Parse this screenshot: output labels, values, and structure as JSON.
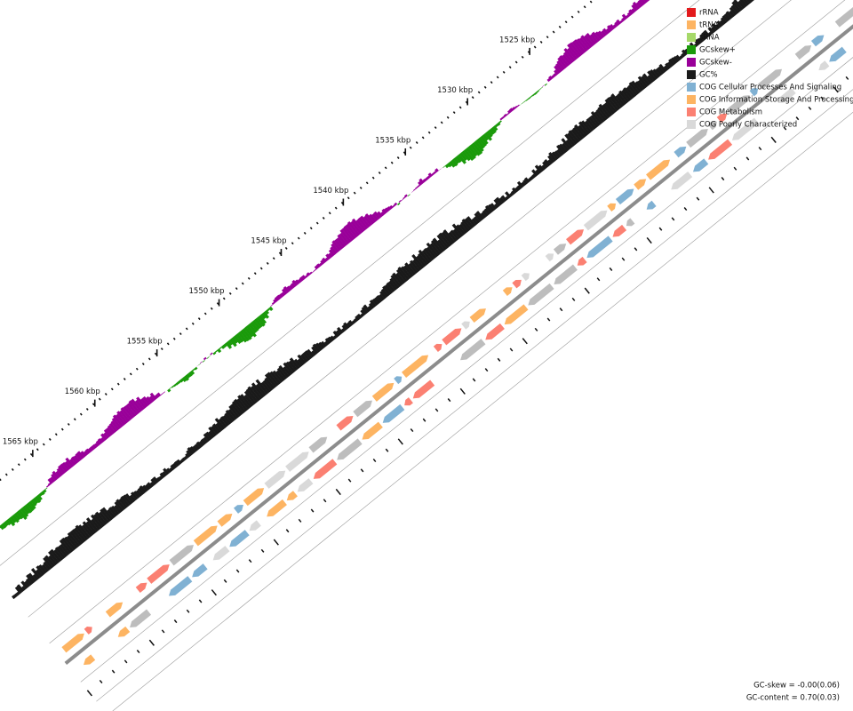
{
  "scale_labels": [
    "1525 kbp",
    "1530 kbp",
    "1535 kbp",
    "1540 kbp",
    "1545 kbp",
    "1550 kbp",
    "1555 kbp",
    "1560 kbp",
    "1565 kbp"
  ],
  "legend": [
    {
      "label": "rRNA",
      "color": "#e31a1c"
    },
    {
      "label": "tRNA",
      "color": "#fdb462"
    },
    {
      "label": "sRNA",
      "color": "#a6d96a"
    },
    {
      "label": "GCskew+",
      "color": "#1a9a0a"
    },
    {
      "label": "GCskew-",
      "color": "#990099"
    },
    {
      "label": "GC%",
      "color": "#1a1a1a"
    },
    {
      "label": "COG Cellular Processes And Signaling",
      "color": "#80b1d3"
    },
    {
      "label": "COG Information Storage And Processing",
      "color": "#fdb462"
    },
    {
      "label": "COG Metabolism",
      "color": "#fb8072"
    },
    {
      "label": "COG Poorly Characterized",
      "color": "#d9d9d9"
    }
  ],
  "footer": {
    "gc_skew": "GC-skew = -0.00(0.06)",
    "gc_content": "GC-content = 0.70(0.03)"
  }
}
